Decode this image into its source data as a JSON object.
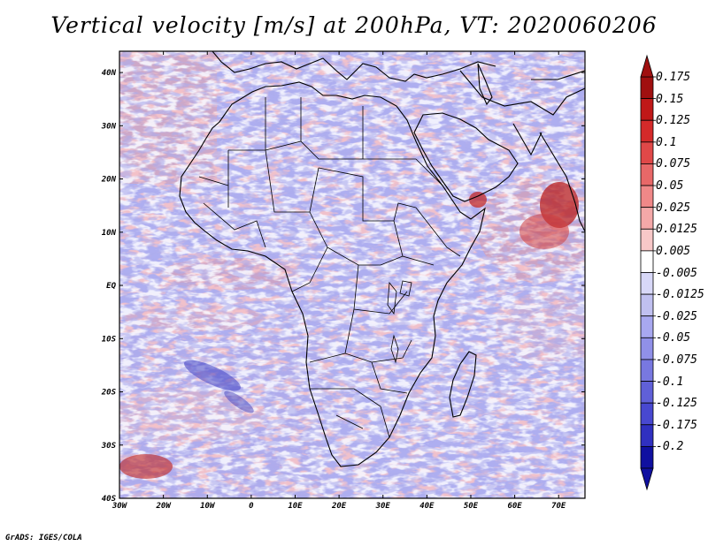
{
  "title": "Vertical velocity [m/s] at 200hPa, VT: 2020060206",
  "footer": "GrADS: IGES/COLA",
  "map": {
    "lon_labels": [
      "30W",
      "20W",
      "10W",
      "0",
      "10E",
      "20E",
      "30E",
      "40E",
      "50E",
      "60E",
      "70E"
    ],
    "lat_labels": [
      "40N",
      "30N",
      "20N",
      "10N",
      "EQ",
      "10S",
      "20S",
      "30S",
      "40S"
    ],
    "lon_range": [
      -30,
      76
    ],
    "lat_range": [
      -40,
      44
    ]
  },
  "colorbar": {
    "labels": [
      "0.175",
      "0.15",
      "0.125",
      "0.1",
      "0.075",
      "0.05",
      "0.025",
      "0.0125",
      "0.005",
      "-0.005",
      "-0.0125",
      "-0.025",
      "-0.05",
      "-0.075",
      "-0.1",
      "-0.125",
      "-0.175",
      "-0.2"
    ],
    "colors": [
      "#a01010",
      "#c01818",
      "#d42a2a",
      "#e04848",
      "#e86868",
      "#f08888",
      "#f4a8a8",
      "#f8c8c8",
      "#ffffff",
      "#d8d8f8",
      "#c0c0f0",
      "#a8a8f0",
      "#9090e8",
      "#7878e0",
      "#6060d8",
      "#4848d0",
      "#3030c0",
      "#1010a0"
    ]
  }
}
